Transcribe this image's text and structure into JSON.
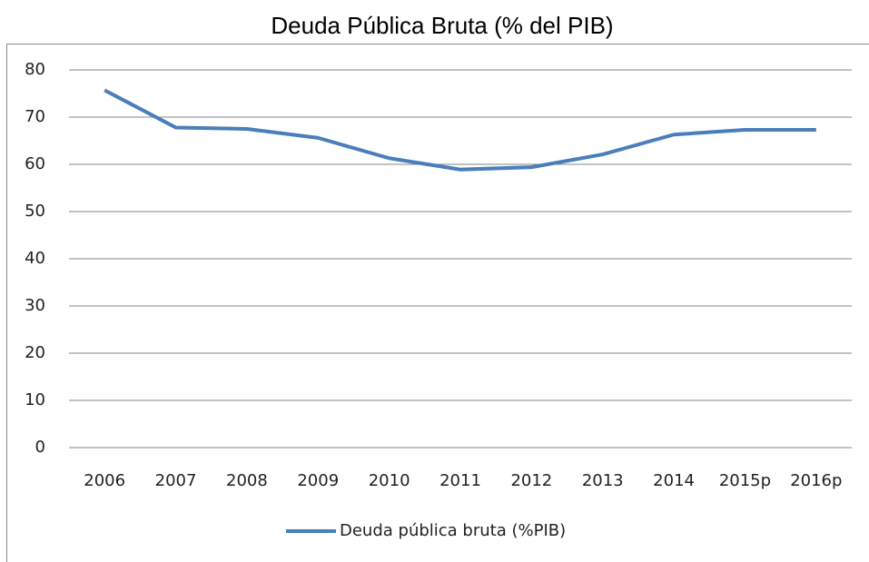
{
  "chart_data": {
    "type": "line",
    "title": "Deuda Pública Bruta (% del PIB)",
    "categories": [
      "2006",
      "2007",
      "2008",
      "2009",
      "2010",
      "2011",
      "2012",
      "2013",
      "2014",
      "2015p",
      "2016p"
    ],
    "series": [
      {
        "name": "Deuda pública bruta (%PIB)",
        "color": "#4a7ebb",
        "values": [
          75.7,
          67.8,
          67.5,
          65.6,
          61.3,
          58.9,
          59.4,
          62.1,
          66.3,
          67.3,
          67.3
        ]
      }
    ],
    "ylim": [
      0,
      80
    ],
    "yticks": [
      0,
      10,
      20,
      30,
      40,
      50,
      60,
      70,
      80
    ],
    "grid": true,
    "legend": "bottom"
  }
}
